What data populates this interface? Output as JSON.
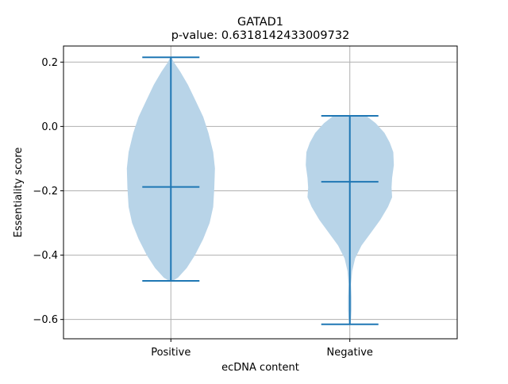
{
  "chart_data": {
    "type": "violin",
    "title": "GATAD1",
    "subtitle": "p-value: 0.6318142433009732",
    "xlabel": "ecDNA content",
    "ylabel": "Essentiality score",
    "categories": [
      "Positive",
      "Negative"
    ],
    "ylim": [
      -0.66,
      0.25
    ],
    "yticks": [
      -0.6,
      -0.4,
      -0.2,
      0.0,
      0.2
    ],
    "ytick_labels": [
      "−0.6",
      "−0.4",
      "−0.2",
      "0.0",
      "0.2"
    ],
    "grid": true,
    "violins": [
      {
        "category": "Positive",
        "min": -0.48,
        "max": 0.215,
        "median": -0.188,
        "profile": [
          [
            0.215,
            0.01
          ],
          [
            0.2,
            0.05
          ],
          [
            0.17,
            0.16
          ],
          [
            0.13,
            0.29
          ],
          [
            0.08,
            0.42
          ],
          [
            0.03,
            0.55
          ],
          [
            -0.02,
            0.64
          ],
          [
            -0.08,
            0.72
          ],
          [
            -0.13,
            0.75
          ],
          [
            -0.19,
            0.74
          ],
          [
            -0.25,
            0.72
          ],
          [
            -0.3,
            0.66
          ],
          [
            -0.35,
            0.55
          ],
          [
            -0.4,
            0.41
          ],
          [
            -0.44,
            0.27
          ],
          [
            -0.47,
            0.12
          ],
          [
            -0.48,
            0.03
          ]
        ]
      },
      {
        "category": "Negative",
        "min": -0.615,
        "max": 0.033,
        "median": -0.172,
        "profile": [
          [
            0.033,
            0.28
          ],
          [
            0.01,
            0.44
          ],
          [
            -0.02,
            0.59
          ],
          [
            -0.05,
            0.68
          ],
          [
            -0.08,
            0.74
          ],
          [
            -0.12,
            0.75
          ],
          [
            -0.16,
            0.72
          ],
          [
            -0.19,
            0.71
          ],
          [
            -0.22,
            0.72
          ],
          [
            -0.25,
            0.65
          ],
          [
            -0.29,
            0.52
          ],
          [
            -0.33,
            0.36
          ],
          [
            -0.37,
            0.2
          ],
          [
            -0.41,
            0.09
          ],
          [
            -0.45,
            0.04
          ],
          [
            -0.49,
            0.02
          ],
          [
            -0.53,
            0.03
          ],
          [
            -0.57,
            0.03
          ],
          [
            -0.6,
            0.02
          ],
          [
            -0.615,
            0.01
          ]
        ]
      }
    ],
    "colors": {
      "body": "#b8d4e8",
      "lines": "#1f77b4",
      "grid": "#b0b0b0"
    }
  }
}
